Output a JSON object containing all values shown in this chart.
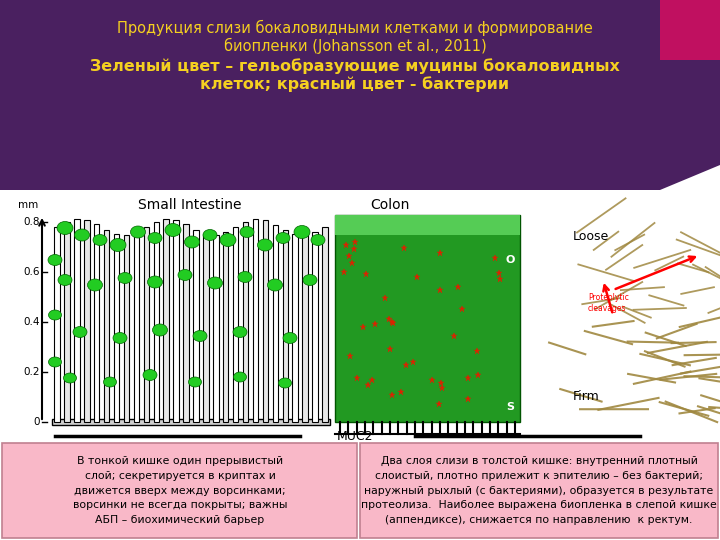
{
  "title_line1": "Продукция слизи бокаловидными клетками и формирование",
  "title_line2": "биопленки (Johansson et al., 2011)",
  "subtitle_line1": "Зеленый цвет – гельобразующие муцины бокаловидных",
  "subtitle_line2": "клеток; красный цвет - бактерии",
  "title_bg_color": "#4a2060",
  "title_text_color": "#f5d020",
  "subtitle_text_color": "#f5d020",
  "accent_rect_color": "#c01060",
  "bottom_box_bg": "#f9b8c8",
  "bottom_box_border": "#c08090",
  "main_bg": "#ffffff",
  "left_box_text": "В тонкой кишке один прерывистый\nслой; секретируется в криптах и\nдвижется вверх между ворсинками;\nворсинки не всегда покрыты; важны\nАБП – биохимический барьер",
  "right_box_text": "Два слоя слизи в толстой кишке: внутренний плотный\nслоистый, плотно прилежит к эпителию – без бактерий;\nнаружный рыхлый (с бактериями), образуется в результате\nпротеолиза.  Наиболее выражена биопленка в слепой кишке\n(аппендиксе), снижается по направлению  к ректум."
}
